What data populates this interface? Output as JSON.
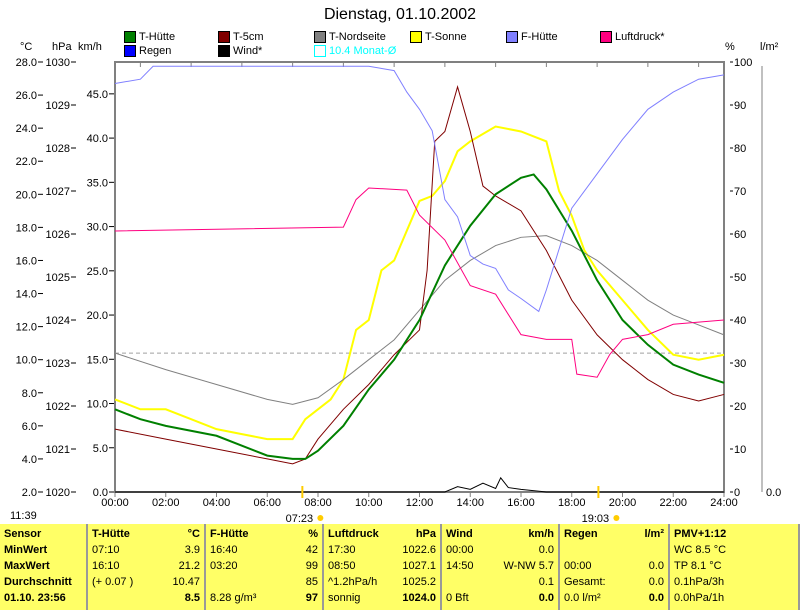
{
  "chart_data": {
    "type": "line",
    "title": "Dienstag, 01.10.2002",
    "xlabel": "",
    "x_ticks": [
      "00:00",
      "02:00",
      "04:00",
      "06:00",
      "08:00",
      "10:00",
      "12:00",
      "14:00",
      "16:00",
      "18:00",
      "20:00",
      "22:00",
      "24:00"
    ],
    "xlim": [
      0,
      24
    ],
    "axes": {
      "celsius": {
        "label": "°C",
        "ticks": [
          "2.0",
          "4.0",
          "6.0",
          "8.0",
          "10.0",
          "12.0",
          "14.0",
          "16.0",
          "18.0",
          "20.0",
          "22.0",
          "24.0",
          "26.0",
          "28.0"
        ],
        "range": [
          2,
          28
        ]
      },
      "hpa": {
        "label": "hPa",
        "ticks": [
          "1020",
          "1021",
          "1022",
          "1023",
          "1024",
          "1025",
          "1026",
          "1027",
          "1028",
          "1029",
          "1030"
        ],
        "range": [
          1020,
          1030
        ]
      },
      "kmh": {
        "label": "km/h",
        "ticks": [
          "0.0",
          "5.0",
          "10.0",
          "15.0",
          "20.0",
          "25.0",
          "30.0",
          "35.0",
          "40.0",
          "45.0"
        ],
        "range": [
          0,
          48.6
        ]
      },
      "percent": {
        "label": "%",
        "ticks": [
          "0",
          "10",
          "20",
          "30",
          "40",
          "50",
          "60",
          "70",
          "80",
          "90",
          "100"
        ],
        "range": [
          0,
          100
        ]
      },
      "rain": {
        "label": "l/m²",
        "ticks": [
          "0.0"
        ]
      }
    },
    "legend": [
      {
        "name": "T-Hütte",
        "color": "#008000"
      },
      {
        "name": "T-5cm",
        "color": "#800000"
      },
      {
        "name": "T-Nordseite",
        "color": "#808080"
      },
      {
        "name": "T-Sonne",
        "color": "#ffff00"
      },
      {
        "name": "F-Hütte",
        "color": "#8080ff"
      },
      {
        "name": "Luftdruck*",
        "color": "#ff0080"
      },
      {
        "name": "Regen",
        "color": "#0000ff"
      },
      {
        "name": "Wind*",
        "color": "#000000"
      },
      {
        "name": "10.4 Monat-Ø",
        "color": "#00ffff"
      }
    ],
    "monthly_avg": 10.4,
    "series": [
      {
        "name": "T-Sonne",
        "color": "#ffff00",
        "axis": "celsius",
        "width": 2,
        "points": [
          [
            0,
            7.6
          ],
          [
            1,
            7
          ],
          [
            2,
            7
          ],
          [
            3,
            6.4
          ],
          [
            4,
            5.8
          ],
          [
            5,
            5.5
          ],
          [
            6,
            5.2
          ],
          [
            7,
            5.2
          ],
          [
            7.5,
            6.4
          ],
          [
            8,
            7
          ],
          [
            8.5,
            7.6
          ],
          [
            9,
            8.8
          ],
          [
            9.5,
            11.8
          ],
          [
            10,
            12.4
          ],
          [
            10.5,
            15.4
          ],
          [
            11,
            16
          ],
          [
            11.5,
            17.8
          ],
          [
            12,
            19.6
          ],
          [
            12.5,
            19.9
          ],
          [
            13,
            20.8
          ],
          [
            13.5,
            22.6
          ],
          [
            14,
            23.2
          ],
          [
            15,
            24.1
          ],
          [
            16,
            23.8
          ],
          [
            17,
            23.2
          ],
          [
            17.5,
            20.2
          ],
          [
            18,
            18.7
          ],
          [
            18.5,
            16.6
          ],
          [
            19,
            15.4
          ],
          [
            20,
            13.6
          ],
          [
            21,
            11.8
          ],
          [
            22,
            10.3
          ],
          [
            23,
            10
          ],
          [
            24,
            10.3
          ]
        ]
      },
      {
        "name": "T-Nordseite",
        "color": "#808080",
        "axis": "celsius",
        "width": 1,
        "points": [
          [
            0,
            10.4
          ],
          [
            2,
            9.4
          ],
          [
            4,
            8.5
          ],
          [
            6,
            7.6
          ],
          [
            7,
            7.3
          ],
          [
            8,
            7.7
          ],
          [
            9,
            8.8
          ],
          [
            10,
            10
          ],
          [
            11,
            11.2
          ],
          [
            12,
            13
          ],
          [
            13,
            14.8
          ],
          [
            14,
            16
          ],
          [
            15,
            16.9
          ],
          [
            16,
            17.4
          ],
          [
            17,
            17.5
          ],
          [
            18,
            16.9
          ],
          [
            19,
            16
          ],
          [
            20,
            14.8
          ],
          [
            21,
            13.6
          ],
          [
            22,
            12.7
          ],
          [
            23,
            12.1
          ],
          [
            24,
            11.5
          ]
        ]
      },
      {
        "name": "T-5cm",
        "color": "#800000",
        "axis": "celsius",
        "width": 1,
        "points": [
          [
            0,
            5.8
          ],
          [
            2,
            5.2
          ],
          [
            4,
            4.6
          ],
          [
            6,
            4
          ],
          [
            7,
            3.7
          ],
          [
            7.5,
            4
          ],
          [
            8,
            5.2
          ],
          [
            9,
            7
          ],
          [
            10,
            8.5
          ],
          [
            11,
            10.3
          ],
          [
            12,
            11.8
          ],
          [
            12.3,
            15.4
          ],
          [
            12.6,
            23.2
          ],
          [
            13,
            23.8
          ],
          [
            13.5,
            26.5
          ],
          [
            14,
            23.8
          ],
          [
            14.5,
            20.5
          ],
          [
            15,
            19.9
          ],
          [
            16,
            19
          ],
          [
            17,
            16.6
          ],
          [
            18,
            13.6
          ],
          [
            19,
            11.5
          ],
          [
            20,
            10
          ],
          [
            21,
            8.8
          ],
          [
            22,
            7.9
          ],
          [
            23,
            7.5
          ],
          [
            24,
            7.9
          ]
        ]
      },
      {
        "name": "T-Hütte",
        "color": "#008000",
        "axis": "celsius",
        "width": 2,
        "points": [
          [
            0,
            7
          ],
          [
            1,
            6.4
          ],
          [
            2,
            6
          ],
          [
            4,
            5.4
          ],
          [
            5,
            4.8
          ],
          [
            6,
            4.2
          ],
          [
            7,
            4
          ],
          [
            7.5,
            4
          ],
          [
            8,
            4.5
          ],
          [
            9,
            6
          ],
          [
            10,
            8.2
          ],
          [
            11,
            10
          ],
          [
            12,
            12.4
          ],
          [
            13,
            15.7
          ],
          [
            14,
            18.1
          ],
          [
            15,
            20
          ],
          [
            16,
            21
          ],
          [
            16.5,
            21.2
          ],
          [
            17,
            20.3
          ],
          [
            18,
            17.8
          ],
          [
            19,
            14.8
          ],
          [
            20,
            12.4
          ],
          [
            21,
            10.9
          ],
          [
            22,
            9.7
          ],
          [
            23,
            9.1
          ],
          [
            24,
            8.6
          ]
        ]
      },
      {
        "name": "F-Hütte",
        "color": "#8080ff",
        "axis": "percent",
        "width": 1,
        "points": [
          [
            0,
            95
          ],
          [
            1,
            96
          ],
          [
            1.5,
            99
          ],
          [
            7,
            99
          ],
          [
            10,
            99
          ],
          [
            11,
            98
          ],
          [
            11.5,
            93
          ],
          [
            12,
            89
          ],
          [
            12.5,
            84
          ],
          [
            13,
            68
          ],
          [
            13.5,
            64
          ],
          [
            14,
            55
          ],
          [
            14.5,
            53
          ],
          [
            15,
            52
          ],
          [
            15.5,
            47
          ],
          [
            16,
            45
          ],
          [
            16.7,
            42
          ],
          [
            17,
            47
          ],
          [
            18,
            66
          ],
          [
            19,
            74
          ],
          [
            20,
            82
          ],
          [
            21,
            89
          ],
          [
            22,
            93
          ],
          [
            23,
            96
          ],
          [
            24,
            97
          ]
        ]
      },
      {
        "name": "Luftdruck*",
        "color": "#ff0080",
        "axis": "hpa",
        "width": 1,
        "points": [
          [
            0,
            1026.07
          ],
          [
            9,
            1026.16
          ],
          [
            9.5,
            1026.8
          ],
          [
            10,
            1027.07
          ],
          [
            11.5,
            1027.02
          ],
          [
            12,
            1026.44
          ],
          [
            13,
            1025.86
          ],
          [
            14,
            1024.8
          ],
          [
            15,
            1024.6
          ],
          [
            16,
            1023.66
          ],
          [
            17,
            1023.55
          ],
          [
            18,
            1023.55
          ],
          [
            18.2,
            1022.74
          ],
          [
            19,
            1022.67
          ],
          [
            19.5,
            1023.2
          ],
          [
            20,
            1023.55
          ],
          [
            21,
            1023.66
          ],
          [
            22,
            1023.9
          ],
          [
            23,
            1023.95
          ],
          [
            24,
            1024
          ]
        ]
      },
      {
        "name": "Wind*",
        "color": "#000000",
        "axis": "kmh",
        "width": 1,
        "points": [
          [
            0,
            0
          ],
          [
            13,
            0
          ],
          [
            13.5,
            0.6
          ],
          [
            14,
            0.3
          ],
          [
            14.5,
            1
          ],
          [
            15,
            0.4
          ],
          [
            15.2,
            1.6
          ],
          [
            15.5,
            0.5
          ],
          [
            16,
            0.3
          ],
          [
            17,
            0
          ],
          [
            24,
            0
          ]
        ]
      }
    ],
    "sunrise": "07:23",
    "sunset": "19:03"
  },
  "footer_time": "11:39",
  "table": {
    "sensor": [
      "Sensor",
      "MinWert",
      "MaxWert",
      "Durchschnitt",
      "01.10. 23:56"
    ],
    "cols": [
      {
        "h": "T-Hütte",
        "u": "°C",
        "rows": [
          [
            "07:10",
            "3.9"
          ],
          [
            "16:10",
            "21.2"
          ],
          [
            "(+ 0.07 )",
            "10.47"
          ],
          [
            "",
            "8.5"
          ]
        ]
      },
      {
        "h": "F-Hütte",
        "u": "%",
        "rows": [
          [
            "16:40",
            "42"
          ],
          [
            "03:20",
            "99"
          ],
          [
            "",
            "85"
          ],
          [
            "8.28 g/m³",
            "97"
          ]
        ]
      },
      {
        "h": "Luftdruck",
        "u": "hPa",
        "rows": [
          [
            "17:30",
            "1022.6"
          ],
          [
            "08:50",
            "1027.1"
          ],
          [
            "^1.2hPa/h",
            "1025.2"
          ],
          [
            "sonnig",
            "1024.0"
          ]
        ]
      },
      {
        "h": "Wind",
        "u": "km/h",
        "rows": [
          [
            "00:00",
            "0.0"
          ],
          [
            "14:50",
            "W-NW 5.7"
          ],
          [
            "",
            "0.1"
          ],
          [
            "0 Bft",
            "0.0"
          ]
        ]
      },
      {
        "h": "Regen",
        "u": "l/m²",
        "rows": [
          [
            "",
            ""
          ],
          [
            "00:00",
            "0.0"
          ],
          [
            "Gesamt:",
            "0.0"
          ],
          [
            "0.0 l/m²",
            "0.0"
          ]
        ]
      }
    ],
    "pmv": {
      "h": "PMV+1:12",
      "rows": [
        "WC 8.5 °C",
        "TP 8.1 °C",
        "0.1hPa/3h",
        "0.0hPa/1h"
      ]
    }
  }
}
